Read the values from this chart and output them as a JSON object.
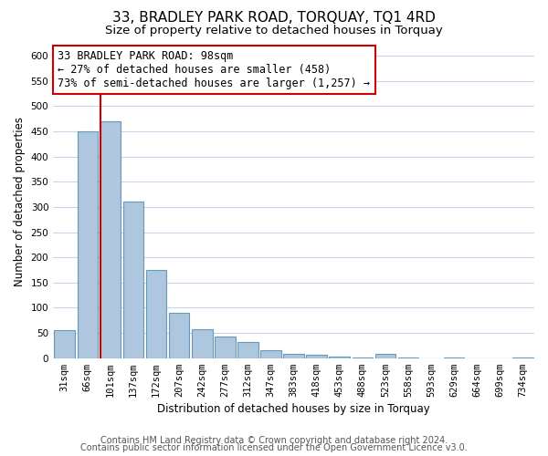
{
  "title": "33, BRADLEY PARK ROAD, TORQUAY, TQ1 4RD",
  "subtitle": "Size of property relative to detached houses in Torquay",
  "xlabel": "Distribution of detached houses by size in Torquay",
  "ylabel": "Number of detached properties",
  "categories": [
    "31sqm",
    "66sqm",
    "101sqm",
    "137sqm",
    "172sqm",
    "207sqm",
    "242sqm",
    "277sqm",
    "312sqm",
    "347sqm",
    "383sqm",
    "418sqm",
    "453sqm",
    "488sqm",
    "523sqm",
    "558sqm",
    "593sqm",
    "629sqm",
    "664sqm",
    "699sqm",
    "734sqm"
  ],
  "values": [
    55,
    450,
    470,
    310,
    175,
    90,
    58,
    42,
    32,
    15,
    8,
    6,
    3,
    2,
    8,
    2,
    0,
    2,
    0,
    0,
    2
  ],
  "bar_color": "#aec6de",
  "bar_edge_color": "#6699bb",
  "marker_index": 2,
  "marker_color": "#cc0000",
  "annotation_line1": "33 BRADLEY PARK ROAD: 98sqm",
  "annotation_line2": "← 27% of detached houses are smaller (458)",
  "annotation_line3": "73% of semi-detached houses are larger (1,257) →",
  "annotation_box_color": "#ffffff",
  "annotation_border_color": "#cc0000",
  "ylim": [
    0,
    620
  ],
  "yticks": [
    0,
    50,
    100,
    150,
    200,
    250,
    300,
    350,
    400,
    450,
    500,
    550,
    600
  ],
  "footer1": "Contains HM Land Registry data © Crown copyright and database right 2024.",
  "footer2": "Contains public sector information licensed under the Open Government Licence v3.0.",
  "bg_color": "#ffffff",
  "grid_color": "#c8d4e8",
  "title_fontsize": 11,
  "subtitle_fontsize": 9.5,
  "axis_label_fontsize": 8.5,
  "tick_fontsize": 7.5,
  "annotation_fontsize": 8.5,
  "footer_fontsize": 7
}
